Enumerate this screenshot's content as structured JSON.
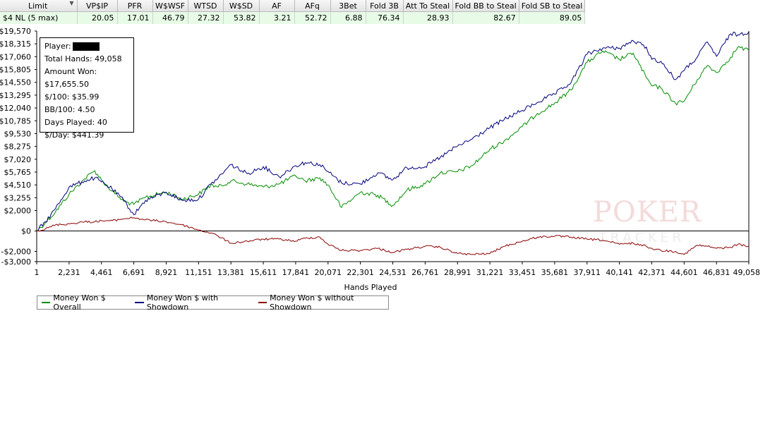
{
  "table": {
    "headers": [
      "Limit",
      "VP$IP",
      "PFR",
      "W$WSF",
      "WTSD",
      "W$SD",
      "AF",
      "AFq",
      "3Bet",
      "Fold 3B",
      "Att To Steal",
      "Fold BB to Steal",
      "Fold SB to Steal"
    ],
    "row": [
      "$4 NL (5 max)",
      "20.05",
      "17.01",
      "46.79",
      "27.32",
      "53.82",
      "3.21",
      "52.72",
      "6.88",
      "76.34",
      "28.93",
      "82.67",
      "89.05"
    ]
  },
  "info": {
    "player_label": "Player:",
    "total_hands": "Total Hands: 49,058",
    "amount_won": "Amount Won: $17,655.50",
    "per100": "$/100: $35.99",
    "bb100": "BB/100: 4.50",
    "days_played": "Days Played: 40",
    "per_day": "$/Day: $441.39"
  },
  "watermark": {
    "line1": "POKER",
    "line2": "TRACKER"
  },
  "colors": {
    "overall": "#008c00",
    "showdown": "#00007a",
    "nonshowdown": "#8b0000",
    "row_bg": "#e7fbe7"
  },
  "chart_data": {
    "type": "line",
    "xlabel": "Hands Played",
    "ylabel": "",
    "xlim": [
      1,
      49058
    ],
    "ylim": [
      -3000,
      19570
    ],
    "grid": false,
    "legend": "bottom-left",
    "y_ticks": [
      19570,
      18315,
      17060,
      15805,
      14550,
      13295,
      12040,
      10785,
      9530,
      8275,
      7020,
      5765,
      4510,
      3255,
      2000,
      0,
      -2000,
      -3000
    ],
    "y_tick_labels": [
      "$19,570",
      "$18,315",
      "$17,060",
      "$15,805",
      "$14,550",
      "$13,295",
      "$12,040",
      "$10,785",
      "$9,530",
      "$8,275",
      "$7,020",
      "$5,765",
      "$4,510",
      "$3,255",
      "$2,000",
      "$0",
      "-$2,000",
      "-$3,000"
    ],
    "x_ticks": [
      1,
      2231,
      4461,
      6691,
      8921,
      11151,
      13381,
      15611,
      17841,
      20071,
      22301,
      24531,
      26761,
      28991,
      31221,
      33451,
      35681,
      37911,
      40141,
      42371,
      44601,
      46831,
      49058
    ],
    "x_tick_labels": [
      "1",
      "2,231",
      "4,461",
      "6,691",
      "8,921",
      "11,151",
      "13,381",
      "15,611",
      "17,841",
      "20,071",
      "22,301",
      "24,531",
      "26,761",
      "28,991",
      "31,221",
      "33,451",
      "35,681",
      "37,911",
      "40,141",
      "42,371",
      "44,601",
      "46,831",
      "49,058"
    ],
    "series": [
      {
        "name": "Money Won $ Overall",
        "x": [
          1,
          600,
          1300,
          2231,
          3300,
          4000,
          4461,
          5200,
          6000,
          6691,
          7500,
          8921,
          10000,
          11151,
          12000,
          12500,
          13381,
          14500,
          15611,
          16700,
          17841,
          18500,
          19500,
          20071,
          21000,
          22301,
          23500,
          24531,
          25500,
          26761,
          27800,
          28991,
          30000,
          31221,
          32200,
          33451,
          34500,
          35681,
          36800,
          37911,
          39000,
          40141,
          41100,
          42000,
          42371,
          43000,
          44000,
          44601,
          45500,
          46200,
          46831,
          47800,
          48300,
          49058
        ],
        "y": [
          0,
          800,
          1900,
          3600,
          5100,
          5900,
          5000,
          3900,
          2900,
          2600,
          3300,
          3800,
          3100,
          3600,
          4500,
          4300,
          4900,
          4600,
          4300,
          4600,
          5400,
          4900,
          5200,
          4500,
          2300,
          3800,
          3500,
          2500,
          4000,
          4600,
          5700,
          5800,
          6400,
          8000,
          8800,
          10200,
          11500,
          12500,
          13800,
          16500,
          17600,
          16800,
          17400,
          15000,
          14200,
          14000,
          12500,
          12700,
          14800,
          16200,
          15500,
          17000,
          18000,
          17655
        ]
      },
      {
        "name": "Money Won $ with Showdown",
        "x": [
          1,
          600,
          1300,
          2231,
          3300,
          4000,
          4461,
          5200,
          6000,
          6691,
          7500,
          8921,
          10000,
          11151,
          12000,
          12500,
          13381,
          14500,
          15611,
          16700,
          17841,
          18500,
          19500,
          20071,
          21000,
          22301,
          23500,
          24531,
          25500,
          26761,
          27800,
          28991,
          30000,
          31221,
          32200,
          33451,
          34500,
          35681,
          36800,
          37911,
          39000,
          40141,
          41100,
          42000,
          42371,
          43000,
          44000,
          44601,
          45500,
          46200,
          46831,
          47800,
          48300,
          49058
        ],
        "y": [
          0,
          900,
          2200,
          4300,
          4900,
          5200,
          4800,
          4100,
          3000,
          1600,
          3000,
          3800,
          3000,
          3100,
          4600,
          5200,
          6500,
          5600,
          6300,
          5300,
          6400,
          6700,
          6500,
          5800,
          4700,
          4600,
          5700,
          5000,
          6200,
          6300,
          7200,
          8300,
          9000,
          10100,
          10900,
          11800,
          12600,
          13400,
          14500,
          17300,
          17900,
          17900,
          18600,
          18000,
          16800,
          16600,
          14800,
          15700,
          17000,
          18500,
          17100,
          19300,
          19200,
          19500
        ]
      },
      {
        "name": "Money Won $ without Showdown",
        "x": [
          1,
          600,
          1300,
          2231,
          3300,
          4000,
          4461,
          5200,
          6000,
          6691,
          7500,
          8921,
          10000,
          11151,
          12000,
          12500,
          13381,
          14500,
          15611,
          16700,
          17841,
          18500,
          19500,
          20071,
          21000,
          22301,
          23500,
          24531,
          25500,
          26761,
          27800,
          28991,
          30000,
          31221,
          32200,
          33451,
          34500,
          35681,
          36800,
          37911,
          39000,
          40141,
          41100,
          42000,
          42371,
          43000,
          44000,
          44601,
          45500,
          46200,
          46831,
          47800,
          48300,
          49058
        ],
        "y": [
          0,
          200,
          600,
          700,
          900,
          900,
          1000,
          1000,
          1200,
          1300,
          1100,
          900,
          600,
          100,
          -200,
          -500,
          -1200,
          -1000,
          -800,
          -800,
          -1000,
          -700,
          -600,
          -1300,
          -1900,
          -1900,
          -1700,
          -2100,
          -1800,
          -1500,
          -1600,
          -2200,
          -2300,
          -2200,
          -1500,
          -1000,
          -600,
          -500,
          -600,
          -800,
          -900,
          -1300,
          -1200,
          -1500,
          -1700,
          -1900,
          -2000,
          -2300,
          -1400,
          -1500,
          -1700,
          -1600,
          -1300,
          -1500
        ]
      }
    ]
  }
}
